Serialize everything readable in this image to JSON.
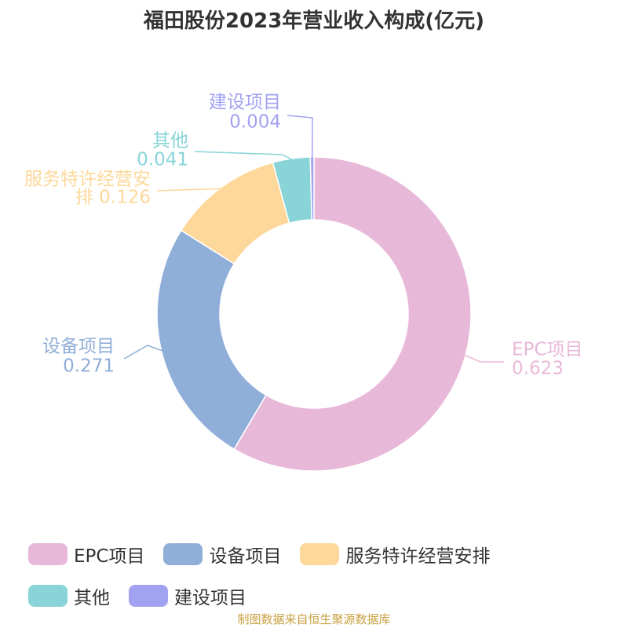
{
  "chart_data": {
    "type": "pie",
    "title": "福田股份2023年营业收入构成(亿元)",
    "categories": [
      "EPC项目",
      "设备项目",
      "服务特许经营安排",
      "其他",
      "建设项目"
    ],
    "values": [
      0.623,
      0.271,
      0.126,
      0.041,
      0.004
    ],
    "value_labels": [
      "0.623",
      "0.271",
      "0.126",
      "0.041",
      "0.004"
    ],
    "colors": [
      "#E8B8D8",
      "#8FAED8",
      "#FDD89A",
      "#88D4D8",
      "#A2A2F2"
    ],
    "donut": true,
    "legend_position": "bottom"
  },
  "source_note": "制图数据来自恒生聚源数据库",
  "source_note_color": "#C8A040"
}
